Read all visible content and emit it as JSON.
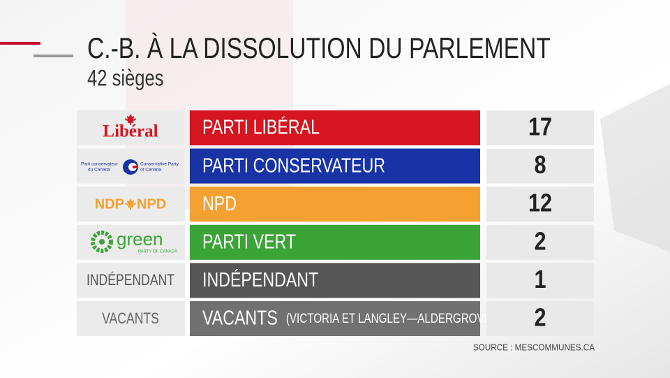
{
  "header": {
    "title": "C.-B. À LA DISSOLUTION DU PARLEMENT",
    "subtitle": "42 sièges"
  },
  "rows": [
    {
      "logo": {
        "name": "Libéral"
      },
      "party": "PARTI LIBÉRAL",
      "color": "#d5151f",
      "seats": 17
    },
    {
      "logo": {
        "left": [
          "Parti conservateur",
          "du Canada"
        ],
        "right": [
          "Conservative Party",
          "of Canada"
        ]
      },
      "party": "PARTI CONSERVATEUR",
      "color": "#1733a6",
      "seats": 8
    },
    {
      "logo": {
        "left": "NDP",
        "right": "NPD"
      },
      "party": "NPD",
      "color": "#f5a131",
      "seats": 12
    },
    {
      "logo": {
        "name": "green",
        "tagline": "PARTY OF CANADA"
      },
      "party": "PARTI VERT",
      "color": "#3ba437",
      "seats": 2
    },
    {
      "logo": {
        "name": "INDÉPENDANT"
      },
      "party": "INDÉPENDANT",
      "color": "#565656",
      "seats": 1
    },
    {
      "logo": {
        "name": "VACANTS"
      },
      "party": "VACANTS",
      "note": "(VICTORIA ET LANGLEY—ALDERGROVE)",
      "color": "#717171",
      "seats": 2
    }
  ],
  "source": "SOURCE : MESCOMMUNES.CA"
}
